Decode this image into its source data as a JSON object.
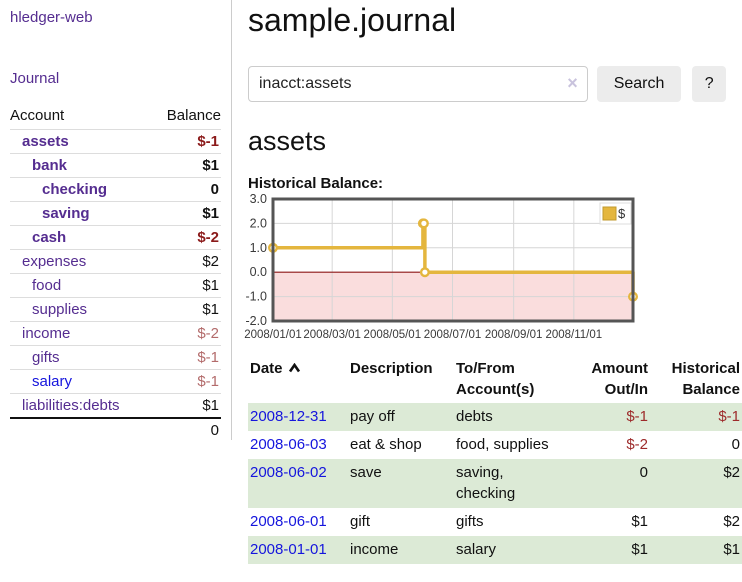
{
  "app": {
    "title": "hledger-web"
  },
  "sidebar": {
    "journal_link": "Journal",
    "accounts": {
      "header_account": "Account",
      "header_balance": "Balance",
      "rows": [
        {
          "name": "assets",
          "balance": "$-1"
        },
        {
          "name": "bank",
          "balance": "$1"
        },
        {
          "name": "checking",
          "balance": "0"
        },
        {
          "name": "saving",
          "balance": "$1"
        },
        {
          "name": "cash",
          "balance": "$-2"
        },
        {
          "name": "expenses",
          "balance": "$2"
        },
        {
          "name": "food",
          "balance": "$1"
        },
        {
          "name": "supplies",
          "balance": "$1"
        },
        {
          "name": "income",
          "balance": "$-2"
        },
        {
          "name": "gifts",
          "balance": "$-1"
        },
        {
          "name": "salary",
          "balance": "$-1"
        },
        {
          "name": "liabilities:debts",
          "balance": "$1"
        }
      ],
      "total": "0"
    }
  },
  "main": {
    "title": "sample.journal",
    "search": {
      "value": "inacct:assets",
      "clear_icon": "×",
      "search_button": "Search",
      "help_button": "?"
    },
    "account_heading": "assets",
    "chart_title": "Historical Balance:"
  },
  "chart_data": {
    "type": "line",
    "step": true,
    "title": "Historical Balance",
    "series": [
      {
        "name": "$",
        "color": "#e4b63e",
        "points": [
          [
            "2008-01-01",
            1
          ],
          [
            "2008-06-01",
            2
          ],
          [
            "2008-06-02",
            2
          ],
          [
            "2008-06-03",
            0
          ],
          [
            "2008-12-31",
            -1
          ]
        ]
      }
    ],
    "xlim": [
      "2008-01-01",
      "2008-12-31"
    ],
    "ylim": [
      -2,
      3
    ],
    "x_ticks": [
      "2008/01/01",
      "2008/03/01",
      "2008/05/01",
      "2008/07/01",
      "2008/09/01",
      "2008/11/01"
    ],
    "y_ticks": [
      3.0,
      2.0,
      1.0,
      0.0,
      -1.0,
      -2.0
    ],
    "grid": true,
    "legend": {
      "label": "$",
      "position": "top-right"
    },
    "negative_fill": "#fadddd",
    "zero_line_color": "#8c1717",
    "border_color": "#555555",
    "grid_color": "#d6d6d6"
  },
  "register": {
    "headers": {
      "date": "Date",
      "description": "Description",
      "accounts": "To/From Account(s)",
      "amount": "Amount Out/In",
      "balance": "Historical Balance"
    },
    "rows": [
      {
        "date": "2008-12-31",
        "description": "pay off",
        "accounts": "debts",
        "amount": "$-1",
        "balance": "$-1"
      },
      {
        "date": "2008-06-03",
        "description": "eat & shop",
        "accounts": "food, supplies",
        "amount": "$-2",
        "balance": "0"
      },
      {
        "date": "2008-06-02",
        "description": "save",
        "accounts": "saving, checking",
        "amount": "0",
        "balance": "$2"
      },
      {
        "date": "2008-06-01",
        "description": "gift",
        "accounts": "gifts",
        "amount": "$1",
        "balance": "$2"
      },
      {
        "date": "2008-01-01",
        "description": "income",
        "accounts": "salary",
        "amount": "$1",
        "balance": "$1"
      }
    ]
  },
  "colors": {
    "link_purple": "#552d90",
    "link_blue": "#1515dd",
    "negative_bold_red": "#8b1a1a",
    "negative_soft_red": "#b36b6b",
    "table_negative_red": "#9d2a2a",
    "row_stripe_green": "#dcead6",
    "chart_line_gold": "#e4b63e",
    "chart_negative_pink": "#fadddd",
    "button_gray": "#ececec"
  }
}
